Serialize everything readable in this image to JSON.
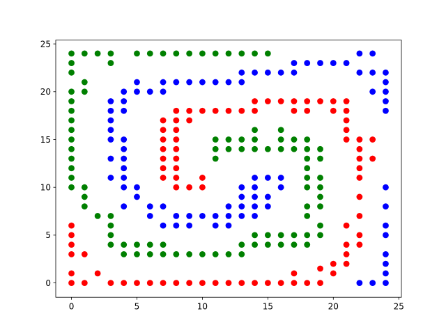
{
  "chart_data": {
    "type": "scatter",
    "title": "",
    "xlabel": "",
    "ylabel": "",
    "xlim": [
      -1.2,
      25.2
    ],
    "ylim": [
      -1.5,
      25.4
    ],
    "xticks": [
      0,
      5,
      10,
      15,
      20,
      25
    ],
    "yticks": [
      0,
      5,
      10,
      15,
      20,
      25
    ],
    "grid": false,
    "legend": "none",
    "series": [
      {
        "color": "#ff0000",
        "points": [
          [
            0,
            0
          ],
          [
            1,
            0
          ],
          [
            3,
            0
          ],
          [
            4,
            0
          ],
          [
            5,
            0
          ],
          [
            6,
            0
          ],
          [
            7,
            0
          ],
          [
            8,
            0
          ],
          [
            9,
            0
          ],
          [
            10,
            0
          ],
          [
            11,
            0
          ],
          [
            12,
            0
          ],
          [
            13,
            0
          ],
          [
            14,
            0
          ],
          [
            15,
            0
          ],
          [
            16,
            0
          ],
          [
            17,
            0
          ],
          [
            18,
            0
          ],
          [
            19,
            0
          ],
          [
            0,
            1
          ],
          [
            2,
            1
          ],
          [
            17,
            1
          ],
          [
            20,
            1
          ],
          [
            19,
            1.5
          ],
          [
            20,
            2
          ],
          [
            21,
            2
          ],
          [
            21,
            3
          ],
          [
            21,
            4
          ],
          [
            21,
            6
          ],
          [
            22,
            4
          ],
          [
            22,
            5
          ],
          [
            22,
            7
          ],
          [
            22,
            9
          ],
          [
            0,
            3
          ],
          [
            1,
            3
          ],
          [
            0,
            4
          ],
          [
            0,
            5
          ],
          [
            0,
            6
          ],
          [
            22,
            11
          ],
          [
            22,
            12
          ],
          [
            22,
            13
          ],
          [
            22,
            14
          ],
          [
            22,
            15
          ],
          [
            21,
            15
          ],
          [
            21,
            16
          ],
          [
            21,
            17
          ],
          [
            23,
            13
          ],
          [
            23,
            15
          ],
          [
            14,
            18
          ],
          [
            17,
            18
          ],
          [
            18,
            18
          ],
          [
            20,
            18
          ],
          [
            21,
            18
          ],
          [
            14,
            19
          ],
          [
            15,
            19
          ],
          [
            16,
            19
          ],
          [
            17,
            19
          ],
          [
            18,
            19
          ],
          [
            19,
            19
          ],
          [
            20,
            19
          ],
          [
            21,
            19
          ],
          [
            8,
            18
          ],
          [
            9,
            18
          ],
          [
            10,
            18
          ],
          [
            11,
            18
          ],
          [
            12,
            18
          ],
          [
            13,
            18
          ],
          [
            7,
            17
          ],
          [
            8,
            17
          ],
          [
            9,
            17
          ],
          [
            7,
            16
          ],
          [
            8,
            16
          ],
          [
            7,
            15
          ],
          [
            8,
            15
          ],
          [
            7,
            14
          ],
          [
            8,
            14
          ],
          [
            7,
            13
          ],
          [
            8,
            13
          ],
          [
            7,
            12
          ],
          [
            8,
            12
          ],
          [
            7,
            11
          ],
          [
            8,
            11
          ],
          [
            8,
            10
          ],
          [
            9,
            10
          ],
          [
            10,
            10
          ],
          [
            10,
            11
          ]
        ]
      },
      {
        "color": "#0000ff",
        "points": [
          [
            22,
            0
          ],
          [
            23,
            0
          ],
          [
            24,
            0
          ],
          [
            24,
            1
          ],
          [
            24,
            2
          ],
          [
            24,
            3
          ],
          [
            24,
            5
          ],
          [
            24,
            6
          ],
          [
            24,
            8
          ],
          [
            24,
            10
          ],
          [
            24,
            18
          ],
          [
            24,
            19
          ],
          [
            24,
            20
          ],
          [
            24,
            21
          ],
          [
            24,
            22
          ],
          [
            23,
            20
          ],
          [
            23,
            22
          ],
          [
            22,
            22
          ],
          [
            22,
            24
          ],
          [
            23,
            24
          ],
          [
            17,
            23
          ],
          [
            18,
            23
          ],
          [
            19,
            23
          ],
          [
            20,
            23
          ],
          [
            21,
            23
          ],
          [
            13,
            22
          ],
          [
            14,
            22
          ],
          [
            15,
            22
          ],
          [
            16,
            22
          ],
          [
            17,
            22
          ],
          [
            5,
            21
          ],
          [
            7,
            21
          ],
          [
            8,
            21
          ],
          [
            9,
            21
          ],
          [
            10,
            21
          ],
          [
            11,
            21
          ],
          [
            12,
            21
          ],
          [
            13,
            21
          ],
          [
            4,
            20
          ],
          [
            5,
            20
          ],
          [
            6,
            20
          ],
          [
            7,
            20
          ],
          [
            3,
            19
          ],
          [
            4,
            19
          ],
          [
            3,
            18
          ],
          [
            4,
            18
          ],
          [
            3,
            17
          ],
          [
            3,
            16
          ],
          [
            3,
            15
          ],
          [
            4,
            15
          ],
          [
            4,
            14
          ],
          [
            3,
            13
          ],
          [
            4,
            13
          ],
          [
            4,
            12
          ],
          [
            3,
            11
          ],
          [
            4,
            11
          ],
          [
            4,
            10
          ],
          [
            5,
            10
          ],
          [
            5,
            9
          ],
          [
            4,
            8
          ],
          [
            6,
            8
          ],
          [
            7,
            8
          ],
          [
            6,
            7
          ],
          [
            8,
            7
          ],
          [
            9,
            7
          ],
          [
            10,
            7
          ],
          [
            11,
            7
          ],
          [
            12,
            7
          ],
          [
            13,
            7
          ],
          [
            14,
            7
          ],
          [
            7,
            6
          ],
          [
            8,
            6
          ],
          [
            9,
            6
          ],
          [
            11,
            6
          ],
          [
            12,
            6
          ],
          [
            12,
            8
          ],
          [
            13,
            8
          ],
          [
            14,
            8
          ],
          [
            15,
            8
          ],
          [
            13,
            9
          ],
          [
            14,
            9
          ],
          [
            15,
            9
          ],
          [
            13,
            10
          ],
          [
            14,
            10
          ],
          [
            16,
            10
          ],
          [
            14,
            11
          ],
          [
            15,
            11
          ],
          [
            16,
            11
          ]
        ]
      },
      {
        "color": "#008000",
        "points": [
          [
            0,
            24
          ],
          [
            1,
            24
          ],
          [
            2,
            24
          ],
          [
            3,
            24
          ],
          [
            5,
            24
          ],
          [
            6,
            24
          ],
          [
            7,
            24
          ],
          [
            8,
            24
          ],
          [
            9,
            24
          ],
          [
            10,
            24
          ],
          [
            11,
            24
          ],
          [
            12,
            24
          ],
          [
            13,
            24
          ],
          [
            14,
            24
          ],
          [
            15,
            24
          ],
          [
            0,
            23
          ],
          [
            3,
            23
          ],
          [
            0,
            22
          ],
          [
            1,
            21
          ],
          [
            0,
            20
          ],
          [
            1,
            20
          ],
          [
            0,
            19
          ],
          [
            0,
            18
          ],
          [
            0,
            17
          ],
          [
            0,
            16
          ],
          [
            0,
            15
          ],
          [
            0,
            14
          ],
          [
            0,
            13
          ],
          [
            0,
            12
          ],
          [
            0,
            11
          ],
          [
            0,
            10
          ],
          [
            1,
            10
          ],
          [
            1,
            9
          ],
          [
            1,
            8
          ],
          [
            2,
            7
          ],
          [
            3,
            7
          ],
          [
            3,
            6
          ],
          [
            3,
            5
          ],
          [
            3,
            4
          ],
          [
            4,
            4
          ],
          [
            5,
            4
          ],
          [
            6,
            4
          ],
          [
            7,
            4
          ],
          [
            4,
            3
          ],
          [
            5,
            3
          ],
          [
            6,
            3
          ],
          [
            7,
            3
          ],
          [
            8,
            3
          ],
          [
            9,
            3
          ],
          [
            10,
            3
          ],
          [
            11,
            3
          ],
          [
            12,
            3
          ],
          [
            13,
            3
          ],
          [
            13,
            4
          ],
          [
            14,
            4
          ],
          [
            15,
            4
          ],
          [
            16,
            4
          ],
          [
            17,
            4
          ],
          [
            18,
            4
          ],
          [
            14,
            5
          ],
          [
            15,
            5
          ],
          [
            16,
            5
          ],
          [
            17,
            5
          ],
          [
            18,
            5
          ],
          [
            19,
            5
          ],
          [
            19,
            6
          ],
          [
            18,
            7
          ],
          [
            18,
            8
          ],
          [
            19,
            8
          ],
          [
            19,
            9
          ],
          [
            18,
            10
          ],
          [
            19,
            10
          ],
          [
            18,
            11
          ],
          [
            19,
            11
          ],
          [
            18,
            12
          ],
          [
            18,
            13
          ],
          [
            19,
            13
          ],
          [
            18,
            14
          ],
          [
            19,
            14
          ],
          [
            17,
            14
          ],
          [
            11,
            13
          ],
          [
            11,
            14
          ],
          [
            12,
            14
          ],
          [
            13,
            14
          ],
          [
            14,
            14
          ],
          [
            15,
            14
          ],
          [
            16,
            14
          ],
          [
            11,
            15
          ],
          [
            12,
            15
          ],
          [
            13,
            15
          ],
          [
            14,
            15
          ],
          [
            16,
            15
          ],
          [
            17,
            15
          ],
          [
            18,
            15
          ],
          [
            14,
            16
          ],
          [
            16,
            16
          ]
        ]
      }
    ]
  }
}
